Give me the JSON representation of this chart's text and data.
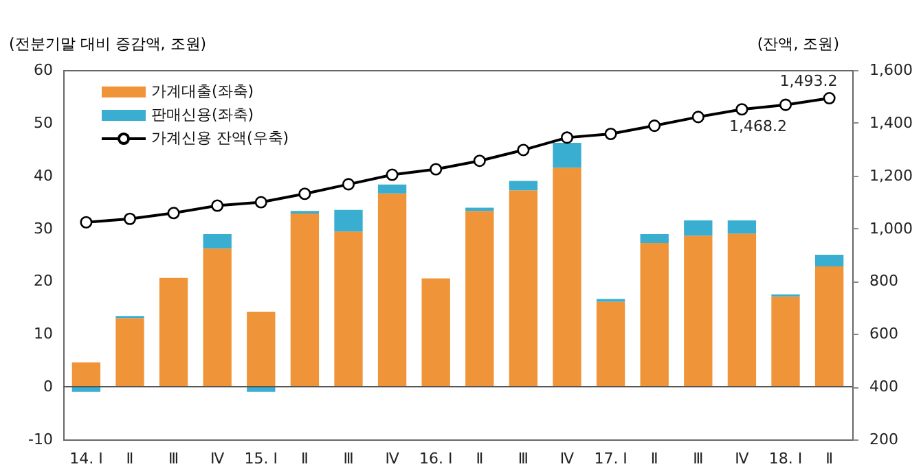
{
  "chart_data": {
    "type": "bar",
    "stacked": true,
    "ylabel": "(전분기말 대비 증감액, 조원)",
    "y2label": "(잔액, 조원)",
    "categories": [
      "14. Ⅰ",
      "Ⅱ",
      "Ⅲ",
      "Ⅳ",
      "15. Ⅰ",
      "Ⅱ",
      "Ⅲ",
      "Ⅳ",
      "16. Ⅰ",
      "Ⅱ",
      "Ⅲ",
      "Ⅳ",
      "17. Ⅰ",
      "Ⅱ",
      "Ⅲ",
      "Ⅳ",
      "18. Ⅰ",
      "Ⅱ"
    ],
    "series": [
      {
        "name": "가계대출(좌축)",
        "color": "#f0943a",
        "values": [
          4.6,
          13.0,
          20.6,
          26.2,
          14.2,
          32.8,
          29.4,
          36.6,
          20.5,
          33.3,
          37.2,
          41.5,
          16.1,
          27.2,
          28.6,
          29.0,
          17.1,
          22.8
        ]
      },
      {
        "name": "판매신용(좌축)",
        "color": "#3aaed0",
        "values": [
          -1.0,
          0.4,
          0.0,
          2.7,
          -1.0,
          0.5,
          4.1,
          1.7,
          0.0,
          0.6,
          1.8,
          4.7,
          0.5,
          1.7,
          2.9,
          2.5,
          0.4,
          2.2
        ]
      },
      {
        "name": "가계신용 잔액(우축)",
        "type": "line",
        "axis": "y2",
        "color": "#000000",
        "marker": "circle",
        "values": [
          1023,
          1036,
          1058,
          1086,
          1099,
          1131,
          1167,
          1203,
          1224,
          1256,
          1297,
          1344,
          1358,
          1389,
          1422,
          1451,
          1468.2,
          1493.2
        ]
      }
    ],
    "ylim": [
      -10,
      60
    ],
    "yticks": [
      -10,
      0,
      10,
      20,
      30,
      40,
      50,
      60
    ],
    "y2lim": [
      200,
      1600
    ],
    "y2ticks": [
      {
        "value": 200,
        "label": "200"
      },
      {
        "value": 400,
        "label": "400"
      },
      {
        "value": 600,
        "label": "600"
      },
      {
        "value": 800,
        "label": "800"
      },
      {
        "value": 1000,
        "label": "1,000"
      },
      {
        "value": 1200,
        "label": "1,200"
      },
      {
        "value": 1400,
        "label": "1,400"
      },
      {
        "value": 1600,
        "label": "1,600"
      }
    ],
    "ref_lines": [
      {
        "axis": "y",
        "value": 0,
        "color": "#555555"
      }
    ],
    "annotations": [
      "1,493.2",
      "1,468.2"
    ],
    "legend": "top left",
    "grid": false
  }
}
